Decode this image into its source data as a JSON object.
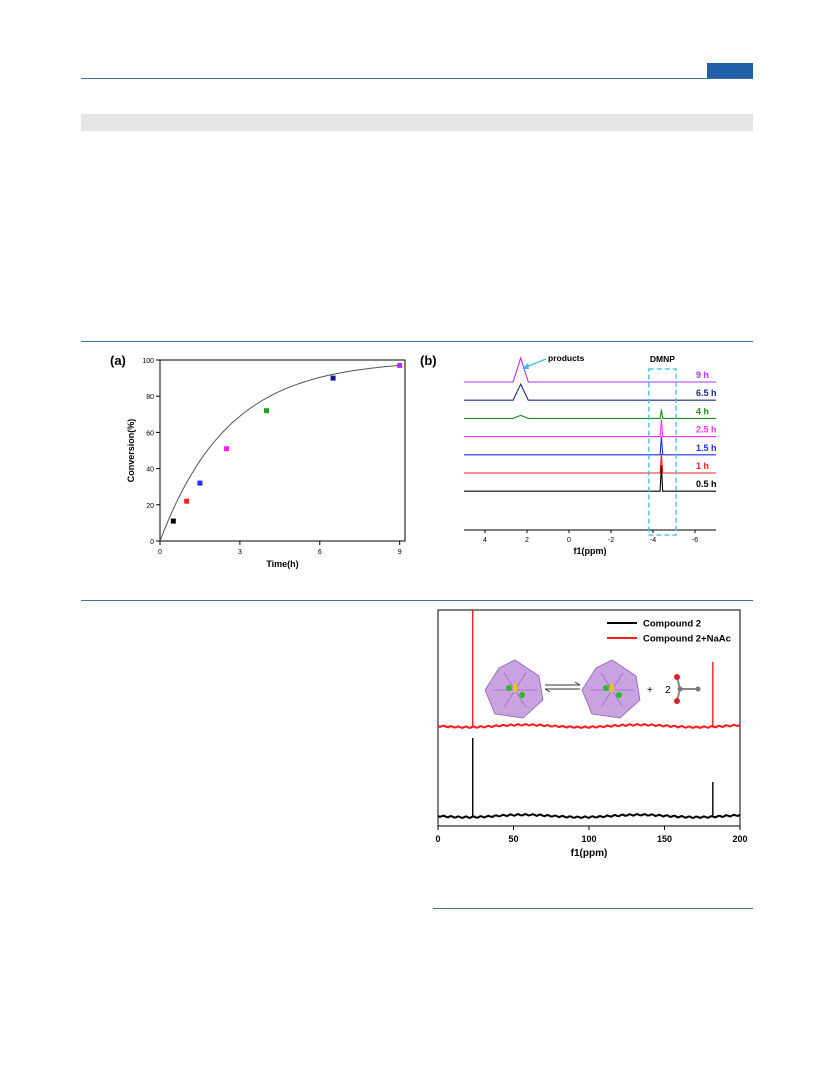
{
  "colors": {
    "rule": "#3d6fa8",
    "header_block": "#1f5fa6",
    "gray_band": "#e6e6e6"
  },
  "figure_top": {
    "panel_a_label": "(a)",
    "panel_b_label": "(b)"
  },
  "chart_data": [
    {
      "type": "scatter",
      "title": "",
      "xlabel": "Time(h)",
      "ylabel": "Conversion(%)",
      "xlim": [
        0,
        9.2
      ],
      "ylim": [
        0,
        100
      ],
      "xticks": [
        0,
        3,
        6,
        9
      ],
      "yticks": [
        0,
        20,
        40,
        60,
        80,
        100
      ],
      "grid": false,
      "points": [
        {
          "x": 0.5,
          "y": 11,
          "color": "#000000"
        },
        {
          "x": 1.0,
          "y": 22,
          "color": "#ff2020"
        },
        {
          "x": 1.5,
          "y": 32,
          "color": "#2030ff"
        },
        {
          "x": 2.5,
          "y": 51,
          "color": "#ff20ff"
        },
        {
          "x": 4.0,
          "y": 72,
          "color": "#20a020"
        },
        {
          "x": 6.5,
          "y": 90,
          "color": "#1a1a90"
        },
        {
          "x": 9.0,
          "y": 97,
          "color": "#b030f0"
        }
      ],
      "fit_curve": true
    },
    {
      "type": "line",
      "title": "",
      "xlabel": "f1(ppm)",
      "xlim": [
        5,
        -7
      ],
      "xticks": [
        4,
        2,
        0,
        -2,
        -4,
        -6
      ],
      "annotations": {
        "products": "products",
        "dmnp": "DMNP"
      },
      "series": [
        {
          "name": "9 h",
          "color": "#b030f0",
          "peaks": [
            {
              "x": 2.3,
              "h": 24,
              "w": 0.12
            }
          ]
        },
        {
          "name": "6.5 h",
          "color": "#1a2a80",
          "peaks": [
            {
              "x": 2.3,
              "h": 16,
              "w": 0.12
            }
          ]
        },
        {
          "name": "4 h",
          "color": "#209020",
          "peaks": [
            {
              "x": 2.3,
              "h": 3,
              "w": 0.12
            },
            {
              "x": -4.4,
              "h": 9,
              "w": 0.02
            }
          ]
        },
        {
          "name": "2.5 h",
          "color": "#ff30ff",
          "peaks": [
            {
              "x": -4.4,
              "h": 17,
              "w": 0.02
            }
          ]
        },
        {
          "name": "1.5 h",
          "color": "#2030e0",
          "peaks": [
            {
              "x": -4.4,
              "h": 18,
              "w": 0.02
            }
          ]
        },
        {
          "name": "1 h",
          "color": "#ff2020",
          "peaks": [
            {
              "x": -4.4,
              "h": 19,
              "w": 0.02
            }
          ]
        },
        {
          "name": "0.5 h",
          "color": "#000000",
          "peaks": [
            {
              "x": -4.4,
              "h": 26,
              "w": 0.02
            }
          ]
        }
      ]
    },
    {
      "type": "line",
      "title": "",
      "xlabel": "f1(ppm)",
      "xlim": [
        0,
        200
      ],
      "xticks": [
        0,
        50,
        100,
        150,
        200
      ],
      "legend_position": "top-right",
      "reaction_text": {
        "plus": "+",
        "coef": "2"
      },
      "series": [
        {
          "name": "Compound 2",
          "color": "#000000",
          "peaks": [
            {
              "x": 23,
              "h": 78
            },
            {
              "x": 182,
              "h": 34
            }
          ]
        },
        {
          "name": "Compound 2+NaAc",
          "color": "#ff1a1a",
          "peaks": [
            {
              "x": 23,
              "h": 120
            },
            {
              "x": 182,
              "h": 64
            }
          ]
        }
      ]
    }
  ]
}
